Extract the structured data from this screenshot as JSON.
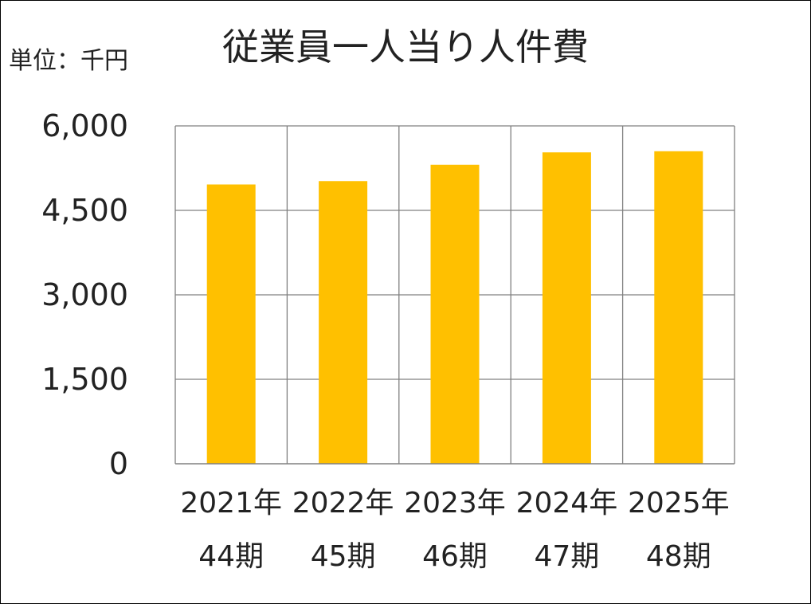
{
  "chart_data": {
    "type": "bar",
    "title": "従業員一人当り人件費",
    "unit_label": "単位：千円",
    "categories": [
      "2021年",
      "2022年",
      "2023年",
      "2024年",
      "2025年"
    ],
    "category_sublabels": [
      "44期",
      "45期",
      "46期",
      "47期",
      "48期"
    ],
    "values": [
      4960,
      5020,
      5310,
      5530,
      5550
    ],
    "ylim": [
      0,
      6000
    ],
    "yticks": [
      0,
      1500,
      3000,
      4500,
      6000
    ],
    "ytick_labels": [
      "0",
      "1,500",
      "3,000",
      "4,500",
      "6,000"
    ],
    "grid": true,
    "bar_color": "#FFC000",
    "grid_color": "#808080"
  }
}
